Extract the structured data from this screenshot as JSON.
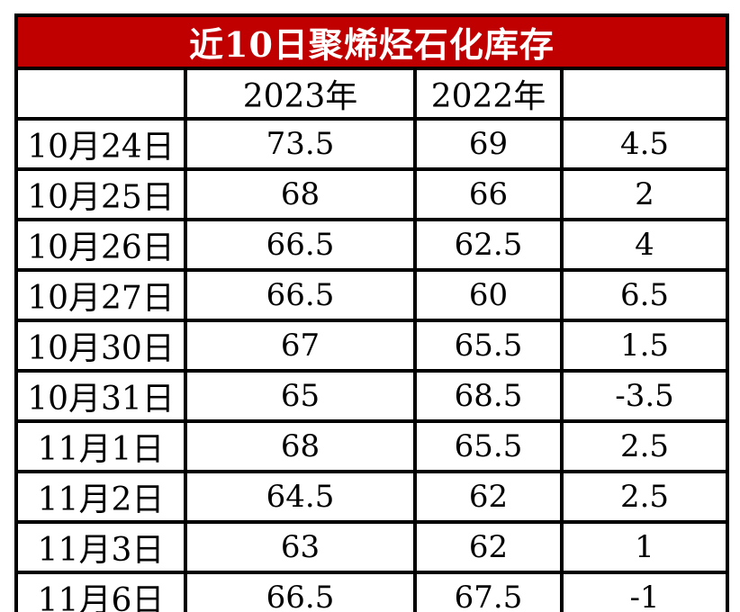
{
  "chart_data": {
    "type": "table",
    "title": "近10日聚烯烃石化库存",
    "columns": [
      "",
      "2023年",
      "2022年",
      ""
    ],
    "rows": [
      {
        "date": "10月24日",
        "y2023": "73.5",
        "y2022": "69",
        "diff": "4.5"
      },
      {
        "date": "10月25日",
        "y2023": "68",
        "y2022": "66",
        "diff": "2"
      },
      {
        "date": "10月26日",
        "y2023": "66.5",
        "y2022": "62.5",
        "diff": "4"
      },
      {
        "date": "10月27日",
        "y2023": "66.5",
        "y2022": "60",
        "diff": "6.5"
      },
      {
        "date": "10月30日",
        "y2023": "67",
        "y2022": "65.5",
        "diff": "1.5"
      },
      {
        "date": "10月31日",
        "y2023": "65",
        "y2022": "68.5",
        "diff": "-3.5"
      },
      {
        "date": "11月1日",
        "y2023": "68",
        "y2022": "65.5",
        "diff": "2.5"
      },
      {
        "date": "11月2日",
        "y2023": "64.5",
        "y2022": "62",
        "diff": "2.5"
      },
      {
        "date": "11月3日",
        "y2023": "63",
        "y2022": "62",
        "diff": "1"
      },
      {
        "date": "11月6日",
        "y2023": "66.5",
        "y2022": "67.5",
        "diff": "-1"
      }
    ],
    "colors": {
      "title_background": "#c00000",
      "title_text": "#ffffff",
      "border": "#000000",
      "cell_background": "#ffffff",
      "cell_text": "#000000"
    }
  }
}
